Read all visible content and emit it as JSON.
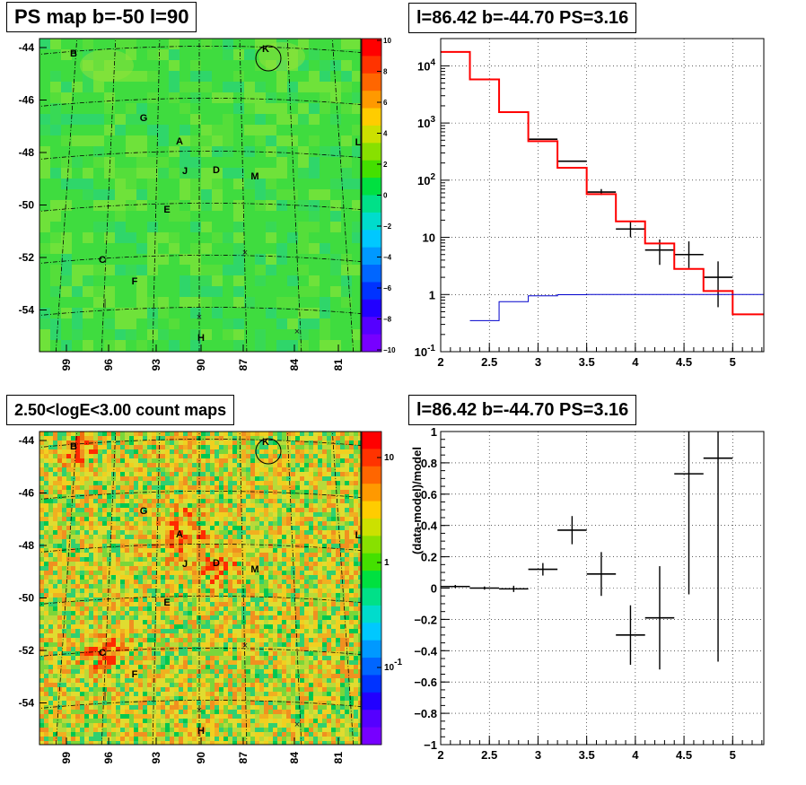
{
  "panels": {
    "top_left_title": "PS map b=-50 l=90",
    "top_right_title": "l=86.42 b=-44.70 PS=3.16",
    "bottom_left_title": "2.50<logE<3.00 count maps",
    "bottom_right_title": "l=86.42 b=-44.70 PS=3.16"
  },
  "chart_data": [
    {
      "type": "heatmap",
      "title": "PS map b=-50 l=90",
      "y_ticks": [
        "-44",
        "-46",
        "-48",
        "-50",
        "-52",
        "-54"
      ],
      "x_ticks": [
        "99",
        "96",
        "93",
        "90",
        "87",
        "84",
        "81"
      ],
      "colorbar_ticks": [
        "10",
        "8",
        "6",
        "4",
        "2",
        "0",
        "−2",
        "−4",
        "−6",
        "−8",
        "−10"
      ],
      "zlim": [
        -10,
        10
      ],
      "source_labels": [
        "B",
        "K",
        "G",
        "A",
        "L",
        "J",
        "D",
        "M",
        "E",
        "C",
        "F",
        "H"
      ]
    },
    {
      "type": "line",
      "title": "l=86.42 b=-44.70 PS=3.16",
      "xlim": [
        2,
        5.32
      ],
      "ylim": [
        0.1,
        30000
      ],
      "yscale": "log",
      "x_ticks": [
        "2",
        "2.5",
        "3",
        "3.5",
        "4",
        "4.5",
        "5"
      ],
      "y_ticks": [
        "10^{-1}",
        "1",
        "10",
        "10^2",
        "10^3",
        "10^4"
      ],
      "grid": true,
      "series": [
        {
          "style": "data points with error bars",
          "color": "#000000",
          "points": [
            {
              "x": 3.05,
              "y": 520,
              "ylo": 520,
              "yhi": 520,
              "xerr": 0.15
            },
            {
              "x": 3.35,
              "y": 215,
              "ylo": 215,
              "yhi": 215,
              "xerr": 0.15
            },
            {
              "x": 3.65,
              "y": 62,
              "ylo": 55,
              "yhi": 70,
              "xerr": 0.15
            },
            {
              "x": 3.95,
              "y": 14,
              "ylo": 10,
              "yhi": 18.5,
              "xerr": 0.15
            },
            {
              "x": 4.25,
              "y": 6,
              "ylo": 3.3,
              "yhi": 9.2,
              "xerr": 0.15
            },
            {
              "x": 4.55,
              "y": 5,
              "ylo": 2.9,
              "yhi": 8.5,
              "xerr": 0.15
            },
            {
              "x": 4.85,
              "y": 2,
              "ylo": 0.6,
              "yhi": 3.8,
              "xerr": 0.15
            }
          ]
        },
        {
          "style": "step",
          "color": "#ff0000",
          "edges": [
            2.0,
            2.3,
            2.6,
            2.9,
            3.2,
            3.5,
            3.8,
            4.1,
            4.4,
            4.7,
            5.0,
            5.32
          ],
          "values": [
            17500,
            5800,
            1550,
            480,
            165,
            57,
            19,
            7.8,
            2.8,
            1.15,
            0.45
          ]
        },
        {
          "style": "step",
          "color": "#0000cc",
          "edges": [
            2.3,
            2.6,
            2.9,
            3.2,
            3.5,
            3.8,
            4.1,
            4.4,
            4.7,
            5.0,
            5.32
          ],
          "values": [
            0.35,
            0.75,
            0.95,
            0.99,
            1.0,
            1.0,
            1.0,
            1.0,
            1.0,
            1.0
          ]
        }
      ]
    },
    {
      "type": "heatmap",
      "title": "2.50<logE<3.00 count maps",
      "y_ticks": [
        "-44",
        "-46",
        "-48",
        "-50",
        "-52",
        "-54"
      ],
      "x_ticks": [
        "99",
        "96",
        "93",
        "90",
        "87",
        "84",
        "81"
      ],
      "colorbar_ticks": [
        "10",
        "1",
        "10^{-1}"
      ],
      "zscale": "log",
      "source_labels": [
        "B",
        "K",
        "G",
        "A",
        "L",
        "J",
        "D",
        "M",
        "E",
        "C",
        "F",
        "H"
      ]
    },
    {
      "type": "scatter",
      "title": "l=86.42 b=-44.70 PS=3.16",
      "ylabel": "(data-model)/model",
      "xlim": [
        2,
        5.32
      ],
      "ylim": [
        -1,
        1
      ],
      "x_ticks": [
        "2",
        "2.5",
        "3",
        "3.5",
        "4",
        "4.5",
        "5"
      ],
      "y_ticks": [
        "1",
        "0.8",
        "0.6",
        "0.4",
        "0.2",
        "0",
        "−0.2",
        "−0.4",
        "−0.6",
        "−0.8",
        "−1"
      ],
      "grid": true,
      "points": [
        {
          "x": 2.15,
          "y": 0.01,
          "err": 0.01,
          "xerr": 0.15
        },
        {
          "x": 2.45,
          "y": 0.0,
          "err": 0.01,
          "xerr": 0.15
        },
        {
          "x": 2.75,
          "y": -0.005,
          "err": 0.02,
          "xerr": 0.15
        },
        {
          "x": 3.05,
          "y": 0.12,
          "err": 0.04,
          "xerr": 0.15
        },
        {
          "x": 3.35,
          "y": 0.37,
          "err": 0.09,
          "xerr": 0.15
        },
        {
          "x": 3.65,
          "y": 0.09,
          "err": 0.14,
          "xerr": 0.15
        },
        {
          "x": 3.95,
          "y": -0.3,
          "err": 0.19,
          "xerr": 0.15
        },
        {
          "x": 4.25,
          "y": -0.19,
          "err": 0.33,
          "xerr": 0.15
        },
        {
          "x": 4.55,
          "y": 0.73,
          "err": 0.77,
          "xerr": 0.15
        },
        {
          "x": 4.85,
          "y": 0.83,
          "err": 1.3,
          "xerr": 0.15
        }
      ]
    }
  ]
}
